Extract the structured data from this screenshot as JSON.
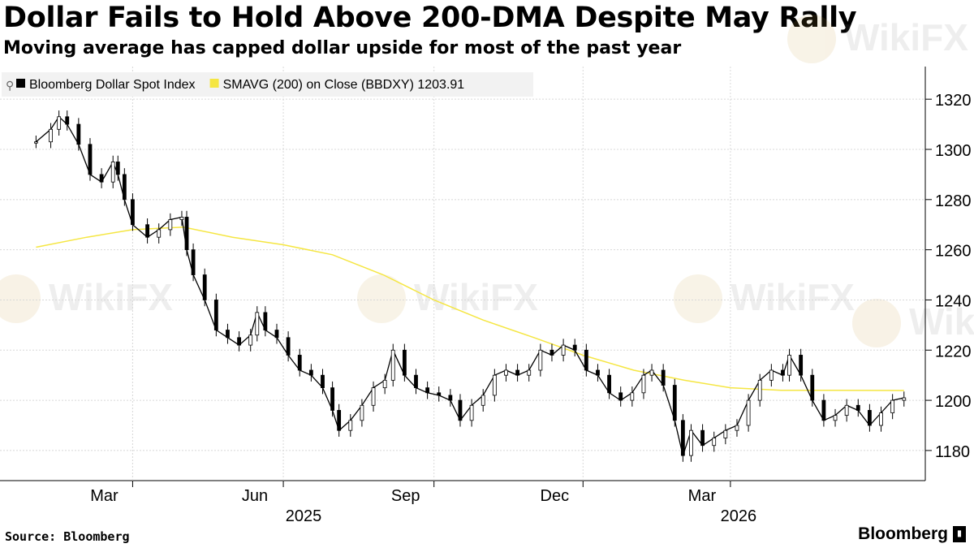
{
  "header": {
    "title": "Dollar Fails to Hold Above 200-DMA Despite May Rally",
    "subtitle": "Moving average has capped dollar upside for most of the past year"
  },
  "footer": {
    "source": "Source: Bloomberg",
    "brand": "Bloomberg"
  },
  "watermarks": [
    "WikiFX",
    "WikiFX",
    "WikiFX",
    "WikiFX",
    "WikiFX"
  ],
  "chart_data": {
    "type": "line",
    "legend": {
      "items": [
        {
          "label": "Bloomberg Dollar Spot Index",
          "color": "#000000"
        },
        {
          "label": "SMAVG (200)  on Close (BBDXY) 1203.91",
          "color": "#f5e642"
        }
      ],
      "position": "top-left"
    },
    "y_axis": {
      "ticks": [
        1180,
        1200,
        1220,
        1240,
        1260,
        1280,
        1300,
        1320
      ],
      "ylim": [
        1168,
        1333
      ],
      "side": "right"
    },
    "x_axis": {
      "month_labels": [
        "Mar",
        "Jun",
        "Sep",
        "Dec",
        "Mar"
      ],
      "year_labels": [
        "2025",
        "2026"
      ],
      "tick_months": [
        "2025-03",
        "2025-06",
        "2025-09",
        "2025-12",
        "2026-03"
      ]
    },
    "grid": true,
    "series": [
      {
        "name": "Bloomberg Dollar Spot Index",
        "style": "candlestick",
        "color": "#000000",
        "points": [
          [
            "2025-01-01",
            1303
          ],
          [
            "2025-01-10",
            1308
          ],
          [
            "2025-01-15",
            1313
          ],
          [
            "2025-01-20",
            1310
          ],
          [
            "2025-01-27",
            1302
          ],
          [
            "2025-02-03",
            1290
          ],
          [
            "2025-02-10",
            1287
          ],
          [
            "2025-02-17",
            1295
          ],
          [
            "2025-02-20",
            1290
          ],
          [
            "2025-02-24",
            1280
          ],
          [
            "2025-03-01",
            1270
          ],
          [
            "2025-03-10",
            1265
          ],
          [
            "2025-03-17",
            1268
          ],
          [
            "2025-03-24",
            1272
          ],
          [
            "2025-03-31",
            1273
          ],
          [
            "2025-04-03",
            1260
          ],
          [
            "2025-04-07",
            1250
          ],
          [
            "2025-04-14",
            1240
          ],
          [
            "2025-04-21",
            1228
          ],
          [
            "2025-04-28",
            1225
          ],
          [
            "2025-05-05",
            1222
          ],
          [
            "2025-05-12",
            1226
          ],
          [
            "2025-05-16",
            1235
          ],
          [
            "2025-05-21",
            1228
          ],
          [
            "2025-05-28",
            1225
          ],
          [
            "2025-06-04",
            1218
          ],
          [
            "2025-06-11",
            1212
          ],
          [
            "2025-06-18",
            1210
          ],
          [
            "2025-06-25",
            1205
          ],
          [
            "2025-07-01",
            1196
          ],
          [
            "2025-07-05",
            1188
          ],
          [
            "2025-07-12",
            1192
          ],
          [
            "2025-07-19",
            1198
          ],
          [
            "2025-07-26",
            1205
          ],
          [
            "2025-08-02",
            1208
          ],
          [
            "2025-08-07",
            1220
          ],
          [
            "2025-08-14",
            1210
          ],
          [
            "2025-08-21",
            1205
          ],
          [
            "2025-08-28",
            1203
          ],
          [
            "2025-09-04",
            1202
          ],
          [
            "2025-09-11",
            1200
          ],
          [
            "2025-09-17",
            1192
          ],
          [
            "2025-09-24",
            1198
          ],
          [
            "2025-10-01",
            1202
          ],
          [
            "2025-10-08",
            1210
          ],
          [
            "2025-10-15",
            1212
          ],
          [
            "2025-10-22",
            1210
          ],
          [
            "2025-10-29",
            1212
          ],
          [
            "2025-11-05",
            1220
          ],
          [
            "2025-11-12",
            1218
          ],
          [
            "2025-11-19",
            1222
          ],
          [
            "2025-11-26",
            1220
          ],
          [
            "2025-12-03",
            1212
          ],
          [
            "2025-12-10",
            1210
          ],
          [
            "2025-12-17",
            1203
          ],
          [
            "2025-12-24",
            1200
          ],
          [
            "2025-12-31",
            1203
          ],
          [
            "2026-01-07",
            1210
          ],
          [
            "2026-01-12",
            1212
          ],
          [
            "2026-01-19",
            1206
          ],
          [
            "2026-01-26",
            1192
          ],
          [
            "2026-01-31",
            1178
          ],
          [
            "2026-02-05",
            1188
          ],
          [
            "2026-02-12",
            1182
          ],
          [
            "2026-02-19",
            1185
          ],
          [
            "2026-02-26",
            1188
          ],
          [
            "2026-03-05",
            1190
          ],
          [
            "2026-03-12",
            1200
          ],
          [
            "2026-03-19",
            1208
          ],
          [
            "2026-03-26",
            1212
          ],
          [
            "2026-04-02",
            1210
          ],
          [
            "2026-04-06",
            1218
          ],
          [
            "2026-04-13",
            1210
          ],
          [
            "2026-04-20",
            1200
          ],
          [
            "2026-04-27",
            1192
          ],
          [
            "2026-05-04",
            1194
          ],
          [
            "2026-05-11",
            1198
          ],
          [
            "2026-05-18",
            1196
          ],
          [
            "2026-05-25",
            1190
          ],
          [
            "2026-06-01",
            1195
          ],
          [
            "2026-06-08",
            1200
          ],
          [
            "2026-06-15",
            1201
          ]
        ]
      },
      {
        "name": "SMAVG (200)  on Close (BBDXY) 1203.91",
        "style": "line",
        "color": "#f5e642",
        "points": [
          [
            "2025-01-01",
            1261
          ],
          [
            "2025-02-01",
            1265
          ],
          [
            "2025-03-01",
            1268
          ],
          [
            "2025-04-01",
            1269
          ],
          [
            "2025-05-01",
            1265
          ],
          [
            "2025-06-01",
            1262
          ],
          [
            "2025-07-01",
            1258
          ],
          [
            "2025-08-01",
            1250
          ],
          [
            "2025-09-01",
            1240
          ],
          [
            "2025-10-01",
            1232
          ],
          [
            "2025-11-01",
            1225
          ],
          [
            "2025-12-01",
            1218
          ],
          [
            "2026-01-01",
            1212
          ],
          [
            "2026-02-01",
            1208
          ],
          [
            "2026-03-01",
            1205
          ],
          [
            "2026-04-01",
            1204
          ],
          [
            "2026-05-01",
            1204
          ],
          [
            "2026-06-15",
            1203.91
          ]
        ]
      }
    ]
  }
}
